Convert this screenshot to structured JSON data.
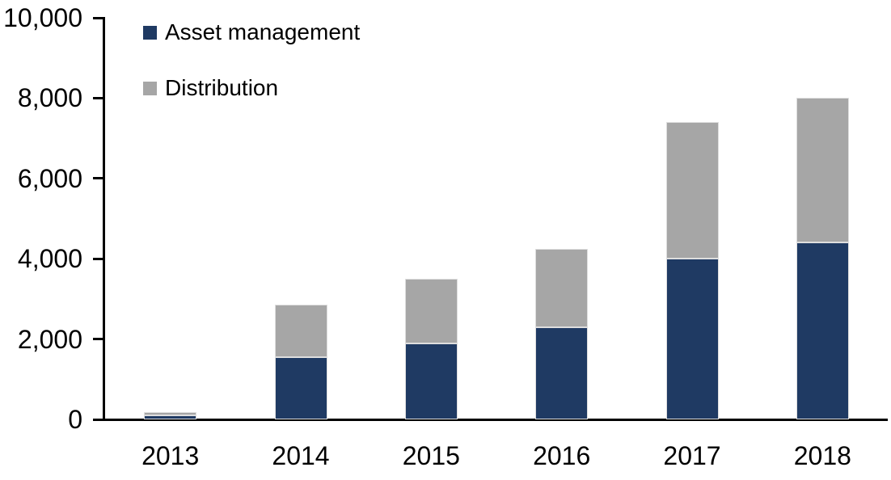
{
  "chart_data": {
    "type": "bar",
    "stacked": true,
    "title": "",
    "xlabel": "",
    "ylabel": "",
    "categories": [
      "2013",
      "2014",
      "2015",
      "2016",
      "2017",
      "2018"
    ],
    "series": [
      {
        "name": "Asset management",
        "color": "#1f3a63",
        "values": [
          100,
          1550,
          1900,
          2300,
          4000,
          4400
        ]
      },
      {
        "name": "Distribution",
        "color": "#a6a6a6",
        "values": [
          80,
          1300,
          1600,
          1950,
          3400,
          3600
        ]
      }
    ],
    "totals": [
      180,
      2850,
      3500,
      4250,
      7400,
      8000
    ],
    "ylim": [
      0,
      10000
    ],
    "yticks": [
      {
        "value": 0,
        "label": "0"
      },
      {
        "value": 2000,
        "label": "2,000"
      },
      {
        "value": 4000,
        "label": "4,000"
      },
      {
        "value": 6000,
        "label": "6,000"
      },
      {
        "value": 8000,
        "label": "8,000"
      },
      {
        "value": 10000,
        "label": "10,000"
      }
    ],
    "grid": false,
    "legend_position": "top-left",
    "colors": {
      "axis": "#000000",
      "text": "#000000",
      "segment_border": "#dedede"
    }
  }
}
